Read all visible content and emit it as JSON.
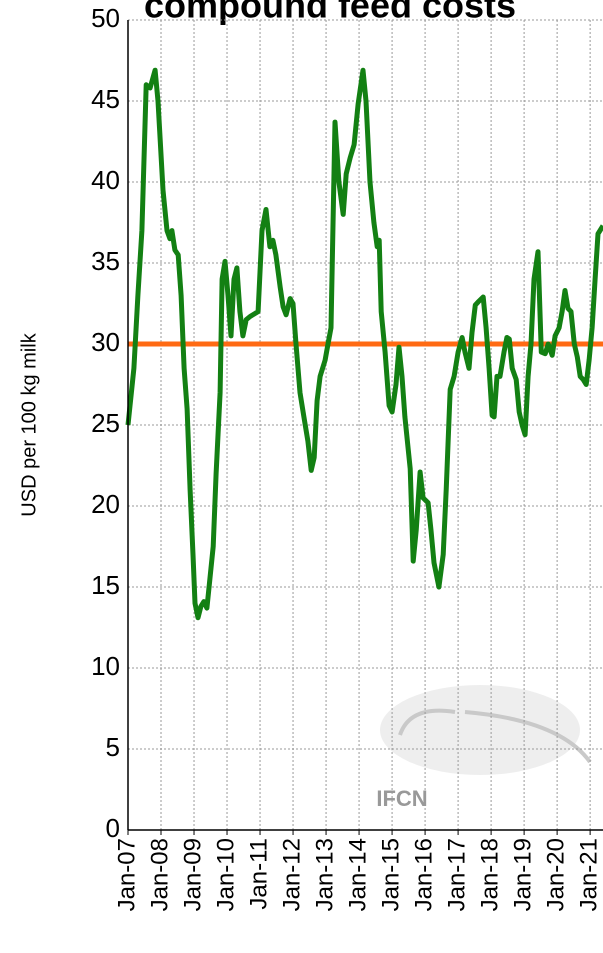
{
  "chart_data": {
    "type": "line",
    "title": "compound feed costs",
    "ylabel": "USD per 100 kg milk",
    "watermark": "IFCN",
    "x": [
      2007.0,
      2007.18,
      2007.3,
      2007.42,
      2007.55,
      2007.67,
      2007.82,
      2007.91,
      2008.06,
      2008.18,
      2008.27,
      2008.33,
      2008.42,
      2008.52,
      2008.61,
      2008.7,
      2008.79,
      2008.88,
      2008.97,
      2009.03,
      2009.12,
      2009.21,
      2009.3,
      2009.39,
      2009.48,
      2009.58,
      2009.67,
      2009.79,
      2009.85,
      2009.94,
      2010.03,
      2010.12,
      2010.21,
      2010.3,
      2010.39,
      2010.48,
      2010.58,
      2010.7,
      2010.94,
      2011.06,
      2011.18,
      2011.3,
      2011.39,
      2011.48,
      2011.61,
      2011.7,
      2011.79,
      2011.91,
      2012.0,
      2012.09,
      2012.21,
      2012.33,
      2012.45,
      2012.55,
      2012.64,
      2012.73,
      2012.82,
      2012.97,
      2013.06,
      2013.15,
      2013.27,
      2013.39,
      2013.52,
      2013.61,
      2013.73,
      2013.85,
      2013.97,
      2014.12,
      2014.21,
      2014.33,
      2014.45,
      2014.55,
      2014.61,
      2014.67,
      2014.79,
      2014.91,
      2015.0,
      2015.12,
      2015.21,
      2015.3,
      2015.39,
      2015.55,
      2015.64,
      2015.73,
      2015.85,
      2015.94,
      2016.09,
      2016.18,
      2016.27,
      2016.42,
      2016.55,
      2016.64,
      2016.76,
      2016.88,
      2017.0,
      2017.12,
      2017.21,
      2017.33,
      2017.42,
      2017.52,
      2017.61,
      2017.76,
      2017.85,
      2017.94,
      2018.03,
      2018.09,
      2018.18,
      2018.27,
      2018.39,
      2018.48,
      2018.55,
      2018.64,
      2018.76,
      2018.85,
      2018.94,
      2019.03,
      2019.12,
      2019.21,
      2019.3,
      2019.42,
      2019.52,
      2019.64,
      2019.73,
      2019.85,
      2019.94,
      2020.06,
      2020.15,
      2020.24,
      2020.33,
      2020.42,
      2020.52,
      2020.61,
      2020.7,
      2020.79,
      2020.88,
      2020.97,
      2021.06,
      2021.15,
      2021.24,
      2021.39
    ],
    "values": [
      25,
      28.5,
      33,
      37,
      46,
      45.8,
      46.9,
      45,
      39.5,
      37,
      36.5,
      37,
      35.8,
      35.5,
      33,
      28.5,
      26,
      21,
      17,
      14,
      13.1,
      13.8,
      14.1,
      13.7,
      15.5,
      17.5,
      22,
      27,
      34,
      35.1,
      33,
      30.5,
      34,
      34.7,
      32,
      30.5,
      31.5,
      31.7,
      32,
      37,
      38.3,
      36,
      36.4,
      35.5,
      33.5,
      32.3,
      31.8,
      32.8,
      32.5,
      30,
      27,
      25.5,
      24,
      22.2,
      23,
      26.5,
      28,
      29,
      30,
      31,
      43.7,
      40,
      38,
      40.5,
      41.5,
      42.3,
      44.8,
      46.9,
      45,
      40,
      37.5,
      36,
      36.4,
      32,
      29.5,
      26.2,
      25.8,
      27.5,
      29.8,
      28,
      25.5,
      22.3,
      16.6,
      18.5,
      22.1,
      20.5,
      20.2,
      18.5,
      16.5,
      15,
      17,
      21,
      27.2,
      28,
      29.5,
      30.4,
      29.5,
      28.5,
      30.7,
      32.4,
      32.6,
      32.9,
      31,
      28.5,
      25.6,
      25.5,
      28,
      28,
      29.5,
      30.4,
      30.3,
      28.5,
      27.8,
      25.8,
      25,
      24.4,
      28,
      30,
      34,
      35.7,
      29.5,
      29.4,
      30,
      29.3,
      30.5,
      31,
      32,
      33.3,
      32.2,
      32,
      30,
      29.2,
      28,
      27.8,
      27.5,
      29,
      31,
      34,
      36.8,
      37.3
    ],
    "color": "#138013",
    "reference_line": {
      "value": 30,
      "color": "#ff6a13"
    },
    "xlim": [
      2007,
      2021.39
    ],
    "xticks": [
      {
        "value": 2007,
        "label": "Jan-07"
      },
      {
        "value": 2008,
        "label": "Jan-08"
      },
      {
        "value": 2009,
        "label": "Jan-09"
      },
      {
        "value": 2010,
        "label": "Jan-10"
      },
      {
        "value": 2011,
        "label": "Jan-11"
      },
      {
        "value": 2012,
        "label": "Jan-12"
      },
      {
        "value": 2013,
        "label": "Jan-13"
      },
      {
        "value": 2014,
        "label": "Jan-14"
      },
      {
        "value": 2015,
        "label": "Jan-15"
      },
      {
        "value": 2016,
        "label": "Jan-16"
      },
      {
        "value": 2017,
        "label": "Jan-17"
      },
      {
        "value": 2018,
        "label": "Jan-18"
      },
      {
        "value": 2019,
        "label": "Jan-19"
      },
      {
        "value": 2020,
        "label": "Jan-20"
      },
      {
        "value": 2021,
        "label": "Jan-21"
      }
    ],
    "ylim": [
      0,
      50
    ],
    "yticks": [
      0,
      5,
      10,
      15,
      20,
      25,
      30,
      35,
      40,
      45,
      50
    ],
    "grid": true
  }
}
